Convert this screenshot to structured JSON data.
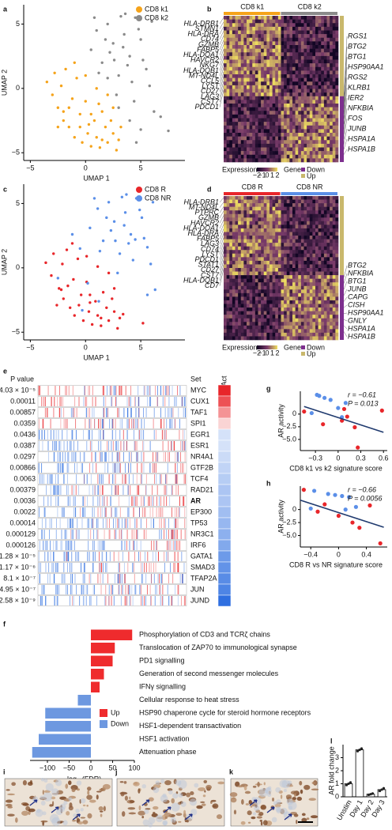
{
  "chart_data": [
    {
      "type": "scatter",
      "panel": "a",
      "x_label": "UMAP 1",
      "y_label": "UMAP 2",
      "xlim": [
        -5.6,
        9
      ],
      "ylim": [
        -5.6,
        6.5
      ],
      "xticks": [
        {
          "value": -5,
          "label": "−5"
        },
        0,
        5
      ],
      "yticks": [
        {
          "value": -5,
          "label": "−5"
        },
        0,
        5
      ],
      "legend": "top-right",
      "series": [
        {
          "name": "CD8 k1",
          "color": "#f5a31a",
          "x": [
            -3.5,
            -3,
            -2.8,
            -2.5,
            -2.2,
            -2,
            -1.8,
            -1.5,
            -1.2,
            -1,
            -0.8,
            -0.5,
            -0.3,
            0,
            0.2,
            0.5,
            0.8,
            1,
            1.3,
            1.5,
            1.8,
            2,
            2.3,
            2.5,
            2.8,
            3,
            3.2,
            -2.5,
            -1.5,
            -0.5,
            0.5,
            1.5,
            2.5,
            -1,
            0,
            1,
            2,
            -2,
            0.3,
            1.2
          ],
          "y": [
            0.5,
            -0.5,
            1.2,
            -1.5,
            0.2,
            -2.5,
            1.5,
            -3,
            -0.8,
            -3.8,
            0.8,
            -2,
            -4.2,
            -1,
            -3.5,
            -4.5,
            -2.5,
            -3.8,
            -4.6,
            -1.8,
            -3,
            -4.2,
            -2.5,
            -3.5,
            -4.8,
            -4,
            -3,
            -3,
            -1.5,
            -3,
            -2,
            -4,
            -1.5,
            2,
            1,
            0,
            -0.5,
            -1.8,
            -2.8,
            -1.2
          ]
        },
        {
          "name": "CD8 k2",
          "color": "#8a8a8a",
          "x": [
            0.5,
            1,
            1.5,
            2,
            2.5,
            3,
            3.5,
            4,
            4.5,
            5,
            5.5,
            6,
            1.2,
            2.2,
            3.2,
            4.2,
            5.2,
            2.8,
            3.8,
            4.8,
            5.8,
            1.8,
            3.4,
            4.4,
            2,
            3,
            4,
            0.8,
            6.2,
            6.8,
            7.5,
            4.6,
            5,
            2.6,
            3.6
          ],
          "y": [
            3,
            4.5,
            2,
            5,
            3.5,
            1,
            4.2,
            2.5,
            5.5,
            3.8,
            1.5,
            5.2,
            1.2,
            2.8,
            5.6,
            0.5,
            2.2,
            -0.5,
            1.8,
            4.6,
            0.2,
            3.8,
            3.2,
            -1,
            0.8,
            -1.5,
            -2.5,
            5.5,
            -1.8,
            -2.2,
            -3.3,
            -4.2,
            -3.2,
            2.2,
            5.8
          ]
        }
      ]
    },
    {
      "type": "heatmap",
      "panel": "b",
      "groups": [
        {
          "name": "CD8 k1",
          "color": "#f5a31a"
        },
        {
          "name": "CD8 k2",
          "color": "#8a8a8a"
        }
      ],
      "genes_left": [
        "HLA-DRB1",
        "STMN1",
        "HLA-DRA",
        "CD74",
        "GZMB",
        "FABP5",
        "HLA-DOA1",
        "HAVCR2",
        "NKG7",
        "HLA-DQB1",
        "MT-ND4L",
        "CCL5",
        "LYST",
        "CD27",
        "LAG3",
        "CST7",
        "PDCD1"
      ],
      "genes_right": [
        "RGS1",
        "BTG2",
        "BTG1",
        "HSP90AA1",
        "RGS2",
        "KLRB1",
        "IER2",
        "NFKBIA",
        "FOS",
        "JUNB",
        "HSPA1A",
        "HSPA1B"
      ],
      "legend_title": "Expression",
      "legend_ticks": [
        "−2",
        "−1",
        "0",
        "1",
        "2"
      ],
      "gene_title": "Gene",
      "gene_types": [
        {
          "name": "Down",
          "color": "#7d2f8e"
        },
        {
          "name": "Up",
          "color": "#c9b86c"
        }
      ]
    },
    {
      "type": "scatter",
      "panel": "c",
      "x_label": "UMAP 1",
      "y_label": "UMAP 2",
      "xlim": [
        -5.6,
        9
      ],
      "ylim": [
        -5.6,
        6.5
      ],
      "xticks": [
        {
          "value": -5,
          "label": "−5"
        },
        0,
        5
      ],
      "yticks": [
        {
          "value": -5,
          "label": "−5"
        },
        0,
        5
      ],
      "legend": "top-right",
      "series": [
        {
          "name": "CD8 R",
          "color": "#e8262a",
          "x": [
            -3.6,
            -3.1,
            -2.9,
            -2.4,
            -2.1,
            -2,
            -1.7,
            -1.4,
            -1.1,
            -1,
            -0.7,
            -0.4,
            -0.2,
            0.1,
            0.3,
            0.6,
            0.9,
            1.1,
            1.4,
            1.6,
            1.9,
            2.1,
            2.4,
            2.6,
            2.9,
            3.1,
            3.4,
            -2.6,
            -1.6,
            -0.6,
            0.4,
            1.4,
            2.6,
            -1.2,
            0.1,
            1.1,
            2.1,
            -2.2,
            0.4,
            5.2
          ],
          "y": [
            0.4,
            -0.6,
            1.1,
            -1.6,
            0.3,
            -2.4,
            1.4,
            -3.1,
            -0.9,
            -3.7,
            0.7,
            -2.1,
            -4.1,
            -1.1,
            -3.4,
            -4.4,
            -2.6,
            -3.7,
            -4.5,
            -1.9,
            -3.1,
            -4.1,
            -2.4,
            -3.4,
            -4.7,
            -3.9,
            -3.6,
            -2.9,
            -1.4,
            -2.9,
            -2.1,
            -3.9,
            -1.6,
            1.9,
            0.9,
            0.1,
            -0.4,
            -1.7,
            -2.7,
            -4.3
          ]
        },
        {
          "name": "CD8 NR",
          "color": "#5b8fe8",
          "x": [
            0.4,
            1.1,
            1.6,
            2.1,
            2.6,
            3.1,
            3.6,
            4.1,
            4.6,
            5.1,
            5.6,
            6.1,
            1.3,
            2.3,
            3.3,
            4.3,
            5.3,
            2.9,
            3.9,
            4.9,
            5.9,
            1.9,
            3.5,
            4.5,
            -0.5,
            0.2,
            -1.2,
            0.8,
            6.3,
            5.6,
            -2.5,
            1.2,
            -0.3,
            2.7,
            3.7
          ],
          "y": [
            3.1,
            4.6,
            2.1,
            5.1,
            3.6,
            1.1,
            4.3,
            2.6,
            5.4,
            3.9,
            1.6,
            5.1,
            1.3,
            2.9,
            5.5,
            0.6,
            2.3,
            -0.4,
            1.9,
            4.5,
            0.3,
            3.9,
            3.3,
            2.2,
            1.5,
            -1.2,
            2.6,
            5.4,
            -1.7,
            -2.1,
            -0.8,
            -2.6,
            -3.3,
            2.1,
            5.7
          ]
        }
      ]
    },
    {
      "type": "heatmap",
      "panel": "d",
      "groups": [
        {
          "name": "CD8 R",
          "color": "#e8262a"
        },
        {
          "name": "CD8 NR",
          "color": "#5b8fe8"
        }
      ],
      "genes_left": [
        "HLA-DRB1",
        "MT-ND4L",
        "PTPRC",
        "GZMB",
        "HAVCR2",
        "HLA-DOA1",
        "HLA-DRA",
        "FABP5",
        "LAG3",
        "CD74",
        "LYST",
        "PDCD1",
        "STAT1",
        "CD27",
        "CST7",
        "HLA-DQB1",
        "CD7"
      ],
      "genes_right": [
        "BTG2",
        "NFKBIA",
        "BTG1",
        "JUNB",
        "CAPG",
        "CISH",
        "HSP90AA1",
        "GNLY",
        "HSPA1A",
        "HSPA1B"
      ],
      "legend_title": "Expression",
      "legend_ticks": [
        "−2",
        "−1",
        "0",
        "1",
        "2"
      ],
      "gene_title": "Gene",
      "gene_types": [
        {
          "name": "Down",
          "color": "#7d2f8e"
        },
        {
          "name": "Up",
          "color": "#c9b86c"
        }
      ]
    },
    {
      "type": "barcode",
      "panel": "e",
      "p_header": "P value",
      "set_header": "Set",
      "act_header": "Act",
      "highlight": "AR",
      "sets": [
        "MYC",
        "CUX1",
        "TAF1",
        "SPI1",
        "EGR1",
        "ESR1",
        "NR4A1",
        "GTF2B",
        "TCF4",
        "RAD21",
        "AR",
        "EP300",
        "TP53",
        "NR3C1",
        "IRF6",
        "GATA1",
        "SMAD3",
        "TFAP2A",
        "JUN",
        "JUND"
      ],
      "p_values": [
        "4.03 × 10⁻⁵",
        "0.00011",
        "0.00857",
        "0.0359",
        "0.0436",
        "0.0387",
        "0.0297",
        "0.00866",
        "0.0063",
        "0.00379",
        "0.0036",
        "0.0022",
        "0.00014",
        "0.000129",
        "0.000126",
        "1.28 × 10⁻⁵",
        "1.17 × 10⁻⁶",
        "8.1 × 10⁻⁷",
        "4.95 × 10⁻⁷",
        "2.58 × 10⁻⁹"
      ],
      "act": [
        1.0,
        0.8,
        0.5,
        0.2,
        -0.2,
        -0.2,
        -0.25,
        -0.3,
        -0.35,
        -0.4,
        -0.4,
        -0.45,
        -0.5,
        -0.55,
        -0.6,
        -0.7,
        -0.75,
        -0.8,
        -0.85,
        -1.0
      ],
      "up_color": "#e8262a",
      "down_color": "#2f6fe0"
    },
    {
      "type": "hbar",
      "panel": "f",
      "x_label": "−log₁₀(FDR)",
      "xlim": [
        -140,
        100
      ],
      "xticks": [
        {
          "value": -100,
          "label": "−100"
        },
        {
          "value": -50,
          "label": "−50"
        },
        0,
        50,
        100
      ],
      "categories": [
        "Phosphorylation of CD3 and TCRζ chains",
        "Translocation of ZAP70 to immunological synapse",
        "PD1 signalling",
        "Generation of second messenger molecules",
        "IFNγ signalling",
        "Cellular response to heat stress",
        "HSP90 chaperone cycle for steroid hormone receptors",
        "HSF1-dependent transactivation",
        "HSF1 activation",
        "Attenuation phase"
      ],
      "series": [
        {
          "name": "Up",
          "color": "#ef2b2d",
          "values": [
            95,
            55,
            50,
            30,
            20,
            null,
            null,
            null,
            null,
            null
          ]
        },
        {
          "name": "Down",
          "color": "#6d98e0",
          "values": [
            null,
            null,
            null,
            null,
            null,
            -30,
            -105,
            -105,
            -120,
            -135
          ]
        }
      ]
    },
    {
      "type": "scatter",
      "panel": "g",
      "x_label": "CD8 k1 vs k2 signature score",
      "y_label": "AR activity",
      "xlim": [
        -0.5,
        0.65
      ],
      "ylim": [
        -7.2,
        4.5
      ],
      "xticks": [
        {
          "value": -0.3,
          "label": "−0.3"
        },
        0,
        0.3,
        0.6
      ],
      "yticks": [
        0,
        {
          "value": -2.5,
          "label": "−2.5"
        },
        {
          "value": -5,
          "label": "−5.0"
        }
      ],
      "annotations": [
        "r = −0.61",
        "P = 0.013"
      ],
      "fit_x": [
        -0.45,
        0.6
      ],
      "fit_y": [
        1.5,
        -3.6
      ],
      "fit_color": "#1f3a6e",
      "series": [
        {
          "color": "#e8262a",
          "x": [
            -0.45,
            0.08,
            0.12,
            0.05,
            0.22,
            0.26,
            0.58,
            -0.2
          ],
          "y": [
            0.5,
            1.0,
            -0.5,
            -1.3,
            -2.6,
            -6.6,
            0.7,
            -2.0
          ]
        },
        {
          "color": "#5b8fe8",
          "x": [
            -0.28,
            -0.25,
            -0.18,
            -0.1,
            0.1,
            0.05,
            -0.35,
            0.0
          ],
          "y": [
            3.8,
            3.6,
            3.2,
            2.8,
            2.2,
            -0.6,
            0.2,
            1.2
          ]
        }
      ]
    },
    {
      "type": "scatter",
      "panel": "h",
      "x_label": "CD8 R vs NR signature score",
      "y_label": "AR activity",
      "xlim": [
        -0.55,
        0.7
      ],
      "ylim": [
        -7.2,
        4.5
      ],
      "xticks": [
        {
          "value": -0.4,
          "label": "−0.4"
        },
        0,
        0.4
      ],
      "yticks": [
        0,
        {
          "value": -2.5,
          "label": "−2.5"
        },
        {
          "value": -5,
          "label": "−5.0"
        }
      ],
      "annotations": [
        "r = −0.66",
        "P = 0.0056"
      ],
      "fit_x": [
        -0.55,
        0.65
      ],
      "fit_y": [
        1.8,
        -3.4
      ],
      "fit_color": "#1f3a6e",
      "series": [
        {
          "color": "#e8262a",
          "x": [
            -0.5,
            -0.3,
            -0.2,
            0.0,
            0.2,
            0.3,
            0.45,
            0.6
          ],
          "y": [
            3.8,
            -0.4,
            1.0,
            -1.2,
            -2.5,
            -3.5,
            0.8,
            -6.5
          ]
        },
        {
          "color": "#5b8fe8",
          "x": [
            -0.35,
            -0.15,
            -0.05,
            0.05,
            0.1,
            0.25,
            -0.4,
            0.15
          ],
          "y": [
            3.6,
            3.0,
            2.8,
            2.6,
            0.0,
            0.5,
            0.2,
            2.4
          ]
        }
      ]
    },
    {
      "type": "image",
      "panel": "i"
    },
    {
      "type": "image",
      "panel": "j"
    },
    {
      "type": "image",
      "panel": "k"
    },
    {
      "type": "bar",
      "panel": "l",
      "y_label": "AR fold change",
      "categories": [
        "Unstim",
        "Day 1",
        "Day 2",
        "Day 3"
      ],
      "values": [
        1,
        3.6,
        0.2,
        0.55
      ],
      "replicates": [
        [
          0.9,
          1.0,
          1.1
        ],
        [
          3.5,
          3.6,
          3.7
        ],
        [
          0.15,
          0.2,
          0.25
        ],
        [
          0.45,
          0.55,
          0.65
        ]
      ],
      "ylim": [
        0,
        4
      ],
      "yticks": [
        0,
        1,
        2,
        3
      ],
      "color": "#ffffff"
    }
  ]
}
